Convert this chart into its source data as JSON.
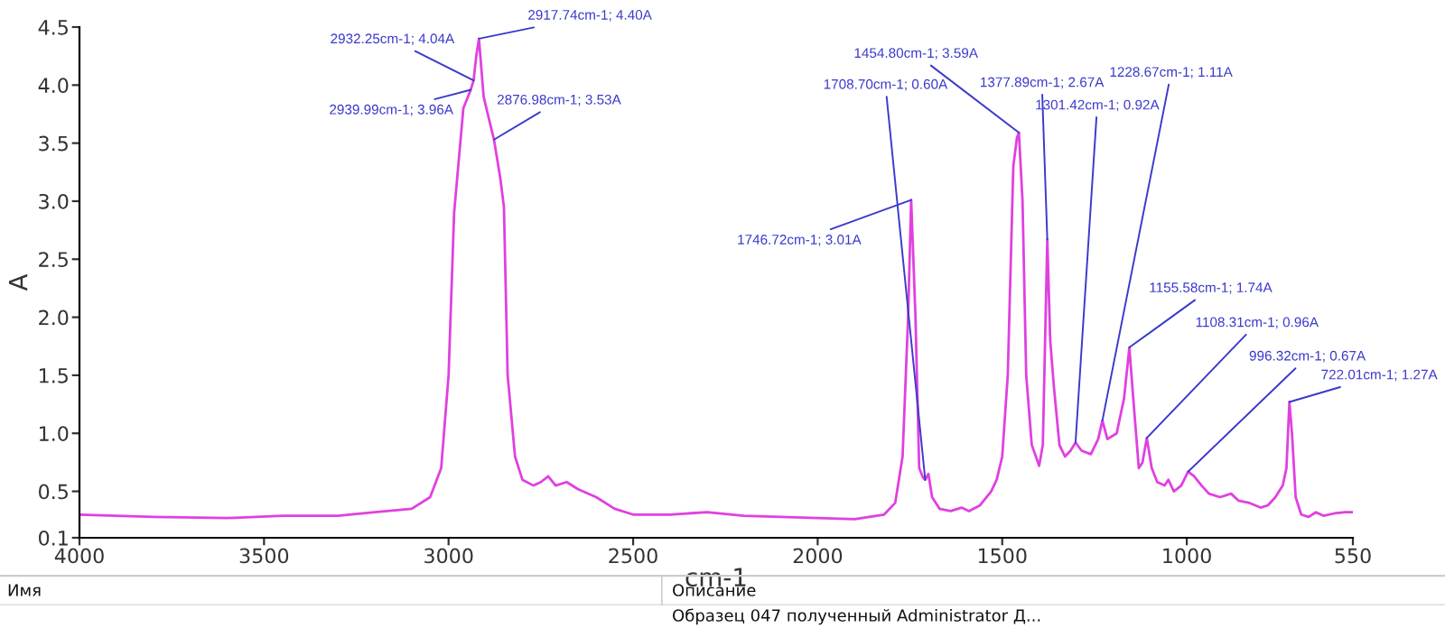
{
  "chart_data": {
    "type": "line",
    "xlabel": "cm-1",
    "ylabel": "A",
    "xlim": [
      4000,
      550
    ],
    "xticks": [
      4000,
      3500,
      3000,
      2500,
      2000,
      1500,
      1000,
      550
    ],
    "ylim": [
      0.1,
      4.5
    ],
    "yticks": [
      0.1,
      {
        "value": 0.5,
        "label": "0.5"
      },
      {
        "value": 1.0,
        "label": "1.0"
      },
      {
        "value": 1.5,
        "label": "1.5"
      },
      {
        "value": 2.0,
        "label": "2.0"
      },
      {
        "value": 2.5,
        "label": "2.5"
      },
      {
        "value": 3.0,
        "label": "3.0"
      },
      {
        "value": 3.5,
        "label": "3.5"
      },
      {
        "value": 4.0,
        "label": "4.0"
      },
      {
        "value": 4.5,
        "label": "4.5"
      }
    ],
    "grid": false,
    "legend": false,
    "marker": "none",
    "line_style": "solid",
    "series": [
      {
        "color": "#e040e0",
        "x": [
          4000,
          3800,
          3600,
          3450,
          3300,
          3200,
          3100,
          3050,
          3020,
          3000,
          2985,
          2960,
          2939.99,
          2932.25,
          2925,
          2917.74,
          2905,
          2890,
          2876.98,
          2860,
          2850,
          2840,
          2820,
          2800,
          2770,
          2750,
          2730,
          2710,
          2680,
          2650,
          2600,
          2550,
          2500,
          2400,
          2300,
          2200,
          2100,
          2000,
          1900,
          1820,
          1790,
          1770,
          1755,
          1746.72,
          1735,
          1725,
          1715,
          1708.7,
          1700,
          1690,
          1670,
          1640,
          1610,
          1590,
          1560,
          1530,
          1515,
          1500,
          1485,
          1470,
          1460,
          1454.8,
          1445,
          1435,
          1420,
          1400,
          1390,
          1377.89,
          1370,
          1360,
          1345,
          1330,
          1315,
          1301.42,
          1285,
          1260,
          1240,
          1228.67,
          1215,
          1190,
          1170,
          1155.58,
          1145,
          1130,
          1120,
          1108.31,
          1095,
          1080,
          1060,
          1050,
          1035,
          1015,
          996.32,
          980,
          960,
          940,
          910,
          880,
          860,
          830,
          800,
          780,
          760,
          740,
          730,
          722.01,
          715,
          705,
          690,
          670,
          650,
          630,
          600,
          570,
          550
        ],
        "values": [
          0.3,
          0.28,
          0.27,
          0.29,
          0.29,
          0.32,
          0.35,
          0.45,
          0.7,
          1.5,
          2.9,
          3.8,
          3.96,
          4.04,
          4.25,
          4.4,
          3.9,
          3.7,
          3.53,
          3.2,
          2.95,
          1.5,
          0.8,
          0.6,
          0.55,
          0.58,
          0.63,
          0.55,
          0.58,
          0.52,
          0.45,
          0.35,
          0.3,
          0.3,
          0.32,
          0.29,
          0.28,
          0.27,
          0.26,
          0.3,
          0.4,
          0.8,
          2.0,
          3.01,
          2.0,
          0.7,
          0.62,
          0.6,
          0.65,
          0.45,
          0.35,
          0.33,
          0.36,
          0.33,
          0.38,
          0.5,
          0.6,
          0.8,
          1.5,
          3.3,
          3.55,
          3.59,
          3.0,
          1.5,
          0.9,
          0.72,
          0.9,
          2.67,
          1.8,
          1.4,
          0.9,
          0.8,
          0.85,
          0.92,
          0.85,
          0.82,
          0.95,
          1.11,
          0.95,
          1.0,
          1.3,
          1.74,
          1.3,
          0.7,
          0.75,
          0.96,
          0.7,
          0.58,
          0.55,
          0.6,
          0.5,
          0.55,
          0.67,
          0.63,
          0.55,
          0.48,
          0.45,
          0.48,
          0.42,
          0.4,
          0.36,
          0.38,
          0.45,
          0.55,
          0.7,
          1.27,
          1.0,
          0.45,
          0.3,
          0.28,
          0.32,
          0.29,
          0.31,
          0.32,
          0.32
        ]
      }
    ],
    "annotations": [
      {
        "text": "2917.74cm-1; 4.40A",
        "x": 2917.74,
        "y": 4.4
      },
      {
        "text": "2932.25cm-1; 4.04A",
        "x": 2932.25,
        "y": 4.04
      },
      {
        "text": "2939.99cm-1; 3.96A",
        "x": 2939.99,
        "y": 3.96
      },
      {
        "text": "2876.98cm-1; 3.53A",
        "x": 2876.98,
        "y": 3.53
      },
      {
        "text": "1746.72cm-1; 3.01A",
        "x": 1746.72,
        "y": 3.01
      },
      {
        "text": "1708.70cm-1; 0.60A",
        "x": 1708.7,
        "y": 0.6
      },
      {
        "text": "1454.80cm-1; 3.59A",
        "x": 1454.8,
        "y": 3.59
      },
      {
        "text": "1377.89cm-1; 2.67A",
        "x": 1377.89,
        "y": 2.67
      },
      {
        "text": "1301.42cm-1; 0.92A",
        "x": 1301.42,
        "y": 0.92
      },
      {
        "text": "1228.67cm-1; 1.11A",
        "x": 1228.67,
        "y": 1.11
      },
      {
        "text": "1155.58cm-1; 1.74A",
        "x": 1155.58,
        "y": 1.74
      },
      {
        "text": "1108.31cm-1; 0.96A",
        "x": 1108.31,
        "y": 0.96
      },
      {
        "text": "996.32cm-1; 0.67A",
        "x": 996.32,
        "y": 0.67
      },
      {
        "text": "722.01cm-1; 1.27A",
        "x": 722.01,
        "y": 1.27
      },
      "Имя",
      "Описание",
      "Образец 047 полученный Administrator Д..."
    ]
  }
}
